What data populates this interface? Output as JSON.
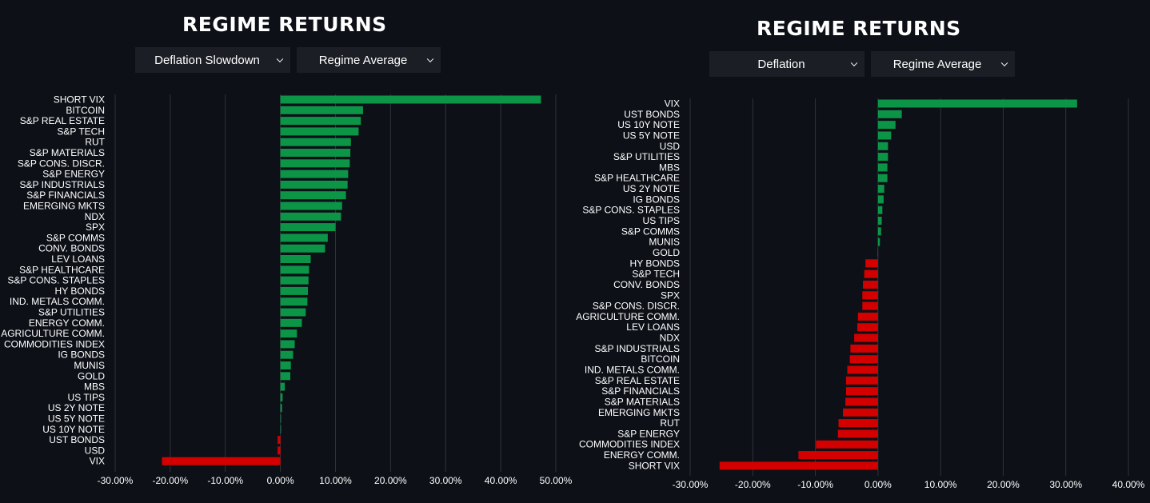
{
  "colors": {
    "positive": "#0c9447",
    "negative": "#d40000",
    "grid": "#2f333a",
    "background": "#0d1117",
    "dropdown_bg": "#1b1e24"
  },
  "left": {
    "title": "REGIME RETURNS",
    "regime_select": {
      "value": "Deflation Slowdown",
      "icon": "chevron-down-icon"
    },
    "stat_select": {
      "value": "Regime Average",
      "icon": "chevron-down-icon"
    }
  },
  "right": {
    "title": "REGIME RETURNS",
    "regime_select": {
      "value": "Deflation",
      "icon": "chevron-down-icon"
    },
    "stat_select": {
      "value": "Regime Average",
      "icon": "chevron-down-icon"
    }
  },
  "chart_data": [
    {
      "type": "bar",
      "orientation": "horizontal",
      "title": "",
      "xlabel": "",
      "ylabel": "",
      "xlim": [
        -30,
        50
      ],
      "xticks": [
        -30,
        -20,
        -10,
        0,
        10,
        20,
        30,
        40,
        50
      ],
      "xtick_labels": [
        "-30.00%",
        "-20.00%",
        "-10.00%",
        "0.00%",
        "10.00%",
        "20.00%",
        "30.00%",
        "40.00%",
        "50.00%"
      ],
      "grid": true,
      "categories": [
        "SHORT VIX",
        "BITCOIN",
        "S&P REAL ESTATE",
        "S&P TECH",
        "RUT",
        "S&P MATERIALS",
        "S&P CONS. DISCR.",
        "S&P ENERGY",
        "S&P INDUSTRIALS",
        "S&P FINANCIALS",
        "EMERGING MKTS",
        "NDX",
        "SPX",
        "S&P COMMS",
        "CONV. BONDS",
        "LEV LOANS",
        "S&P HEALTHCARE",
        "S&P CONS. STAPLES",
        "HY BONDS",
        "IND. METALS COMM.",
        "S&P UTILITIES",
        "ENERGY COMM.",
        "AGRICULTURE COMM.",
        "COMMODITIES INDEX",
        "IG BONDS",
        "MUNIS",
        "GOLD",
        "MBS",
        "US TIPS",
        "US 2Y NOTE",
        "US 5Y NOTE",
        "US 10Y NOTE",
        "UST BONDS",
        "USD",
        "VIX"
      ],
      "values": [
        47.3,
        15.0,
        14.6,
        14.2,
        12.8,
        12.7,
        12.6,
        12.3,
        12.2,
        11.9,
        11.2,
        11.0,
        10.0,
        8.6,
        8.1,
        5.5,
        5.2,
        5.1,
        5.0,
        4.9,
        4.6,
        3.9,
        3.0,
        2.6,
        2.3,
        1.9,
        1.8,
        0.8,
        0.4,
        0.3,
        0.1,
        0.05,
        -0.5,
        -0.5,
        -21.5
      ]
    },
    {
      "type": "bar",
      "orientation": "horizontal",
      "title": "",
      "xlabel": "",
      "ylabel": "",
      "xlim": [
        -30,
        40
      ],
      "xticks": [
        -30,
        -20,
        -10,
        0,
        10,
        20,
        30,
        40
      ],
      "xtick_labels": [
        "-30.00%",
        "-20.00%",
        "-10.00%",
        "0.00%",
        "10.00%",
        "20.00%",
        "30.00%",
        "40.00%"
      ],
      "grid": true,
      "categories": [
        "VIX",
        "UST BONDS",
        "US 10Y NOTE",
        "US 5Y NOTE",
        "USD",
        "S&P UTILITIES",
        "MBS",
        "S&P HEALTHCARE",
        "US 2Y NOTE",
        "IG BONDS",
        "S&P CONS. STAPLES",
        "US TIPS",
        "S&P COMMS",
        "MUNIS",
        "GOLD",
        "HY BONDS",
        "S&P TECH",
        "CONV. BONDS",
        "SPX",
        "S&P CONS. DISCR.",
        "AGRICULTURE COMM.",
        "LEV LOANS",
        "NDX",
        "S&P INDUSTRIALS",
        "BITCOIN",
        "IND. METALS COMM.",
        "S&P REAL ESTATE",
        "S&P FINANCIALS",
        "S&P MATERIALS",
        "EMERGING MKTS",
        "RUT",
        "S&P ENERGY",
        "COMMODITIES INDEX",
        "ENERGY COMM.",
        "SHORT VIX"
      ],
      "values": [
        31.8,
        3.8,
        2.8,
        2.1,
        1.6,
        1.6,
        1.5,
        1.5,
        1.0,
        0.9,
        0.7,
        0.6,
        0.5,
        0.3,
        -0.1,
        -2.0,
        -2.2,
        -2.4,
        -2.5,
        -2.5,
        -3.2,
        -3.3,
        -3.8,
        -4.4,
        -4.5,
        -4.9,
        -5.1,
        -5.1,
        -5.2,
        -5.6,
        -6.3,
        -6.4,
        -9.9,
        -12.7,
        -25.3
      ]
    }
  ]
}
